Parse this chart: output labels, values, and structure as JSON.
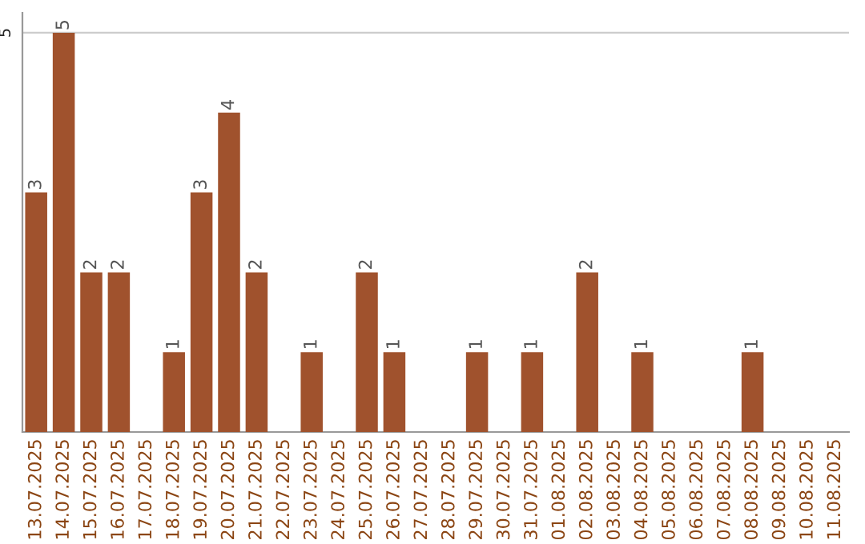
{
  "chart_data": {
    "type": "bar",
    "categories": [
      "13.07.2025",
      "14.07.2025",
      "15.07.2025",
      "16.07.2025",
      "17.07.2025",
      "18.07.2025",
      "19.07.2025",
      "20.07.2025",
      "21.07.2025",
      "22.07.2025",
      "23.07.2025",
      "24.07.2025",
      "25.07.2025",
      "26.07.2025",
      "27.07.2025",
      "28.07.2025",
      "29.07.2025",
      "30.07.2025",
      "31.07.2025",
      "01.08.2025",
      "02.08.2025",
      "03.08.2025",
      "04.08.2025",
      "05.08.2025",
      "06.08.2025",
      "07.08.2025",
      "08.08.2025",
      "09.08.2025",
      "10.08.2025",
      "11.08.2025"
    ],
    "values": [
      3,
      5,
      2,
      2,
      0,
      1,
      3,
      4,
      2,
      0,
      1,
      0,
      2,
      1,
      0,
      0,
      1,
      0,
      1,
      0,
      2,
      0,
      1,
      0,
      0,
      0,
      1,
      0,
      0,
      0
    ],
    "value_labels": [
      "3",
      "5",
      "2",
      "2",
      null,
      "1",
      "3",
      "4",
      "2",
      null,
      "1",
      null,
      "2",
      "1",
      null,
      null,
      "1",
      null,
      "1",
      null,
      "2",
      null,
      "1",
      null,
      null,
      null,
      "1",
      null,
      null,
      null
    ],
    "color": "#a0522d",
    "ylim": [
      0,
      5.25
    ],
    "yticks": [
      5
    ],
    "grid": "y"
  }
}
